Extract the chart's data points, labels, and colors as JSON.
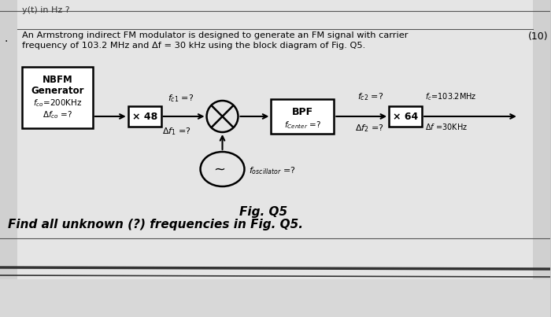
{
  "bg_color": "#c8c8c8",
  "paper_color": "#e8e8e8",
  "header_text": "y(t) in Hz ?",
  "title_line1": "An Armstrong indirect FM modulator is designed to generate an FM signal with carrier",
  "title_line2": "frequency of 103.2 MHz and Δf = 30 kHz using the block diagram of Fig. Q5.",
  "question_number": "(10)",
  "fig_label": "Fig. Q5",
  "find_text": "Find all unknown (?) frequencies in Fig. Q5.",
  "nbfm_line1": "NBFM",
  "nbfm_line2": "Generator",
  "nbfm_line3": "$f_{co}$=200KHz",
  "nbfm_line4": "$\\Delta f_{co}$ =?",
  "x48_label": "× 48",
  "fc1_label": "$f_{c1}$ =?",
  "df1_label": "$\\Delta f_1$ =?",
  "bpf_line1": "BPF",
  "bpf_line2": "$f_{Center}$ =?",
  "fc2_label": "$f_{c2}$ =?",
  "df2_label": "$\\Delta f_2$ =?",
  "x64_label": "× 64",
  "fc_final_label": "$f_c$=103.2MHz",
  "df_final_label": "$\\Delta f$ =30KHz",
  "fosc_label": "$f_{oscillator}$ =?",
  "dot_label": "."
}
